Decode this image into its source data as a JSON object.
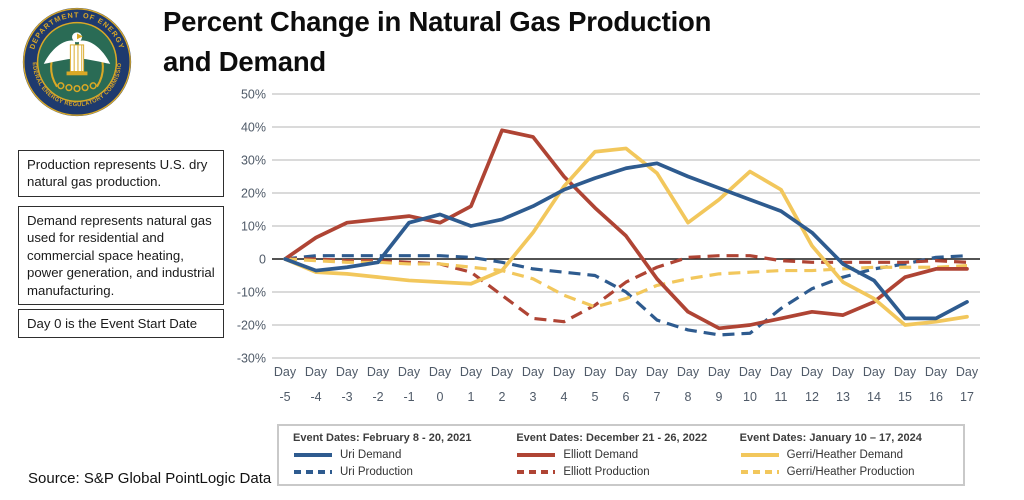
{
  "title": {
    "line1": "Percent Change in Natural Gas Production",
    "line2": "and Demand"
  },
  "logo": {
    "top_text": "DEPARTMENT OF ENERGY",
    "bottom_text": "FEDERAL ENERGY REGULATORY COMMISSION",
    "ring_color": "#1E3A6E",
    "field_color": "#2A6B55",
    "gold": "#D9A826"
  },
  "notes": [
    {
      "text": "Production represents U.S. dry natural gas production."
    },
    {
      "text": "Demand represents natural gas used for residential and commercial space heating, power generation, and industrial manufacturing."
    },
    {
      "text": "Day 0 is the Event Start Date"
    }
  ],
  "source": "Source: S&P Global PointLogic Data",
  "legend": {
    "groups": [
      {
        "event_dates": "Event Dates: February 8 - 20, 2021",
        "entries": [
          {
            "label": "Uri Demand",
            "style": "solid",
            "color": "#2E5B8F"
          },
          {
            "label": "Uri Production",
            "style": "dashed",
            "color": "#2E5B8F"
          }
        ]
      },
      {
        "event_dates": "Event Dates: December 21 - 26, 2022",
        "entries": [
          {
            "label": "Elliott Demand",
            "style": "solid",
            "color": "#AF4434"
          },
          {
            "label": "Elliott Production",
            "style": "dashed",
            "color": "#AF4434"
          }
        ]
      },
      {
        "event_dates": "Event Dates: January 10 – 17, 2024",
        "entries": [
          {
            "label": "Gerri/Heather Demand",
            "style": "solid",
            "color": "#F2C75C"
          },
          {
            "label": "Gerri/Heather Production",
            "style": "dashed",
            "color": "#F2C75C"
          }
        ]
      }
    ]
  },
  "chart_data": {
    "type": "line",
    "x_tick_prefix": "Day",
    "categories": [
      "-5",
      "-4",
      "-3",
      "-2",
      "-1",
      "0",
      "1",
      "2",
      "3",
      "4",
      "5",
      "6",
      "7",
      "8",
      "9",
      "10",
      "11",
      "12",
      "13",
      "14",
      "15",
      "16",
      "17"
    ],
    "ylim": [
      -30,
      50
    ],
    "yticks": [
      50,
      40,
      30,
      20,
      10,
      0,
      -10,
      -20,
      -30
    ],
    "grid": true,
    "legend_position": "bottom",
    "series": [
      {
        "name": "Uri Demand",
        "color": "#2E5B8F",
        "dash": false,
        "values": [
          0,
          -3.5,
          -2.5,
          -1,
          11,
          13.5,
          10,
          12,
          16,
          21,
          24.5,
          27.5,
          29,
          25,
          21.5,
          18,
          14.5,
          8,
          -1.5,
          -6.5,
          -18,
          -18,
          -13
        ]
      },
      {
        "name": "Uri Production",
        "color": "#2E5B8F",
        "dash": true,
        "values": [
          0,
          1,
          1,
          1,
          1,
          1,
          0.5,
          -1,
          -3,
          -4,
          -5,
          -10,
          -18.5,
          -21.5,
          -23,
          -22.5,
          -15,
          -9,
          -5.5,
          -3,
          -1.5,
          0.5,
          1
        ]
      },
      {
        "name": "Elliott Demand",
        "color": "#AF4434",
        "dash": false,
        "values": [
          0,
          6.5,
          11,
          12,
          13,
          11,
          16,
          39,
          37,
          25,
          15.5,
          7,
          -6,
          -16,
          -21,
          -20,
          -18,
          -16,
          -17,
          -13,
          -5.5,
          -3,
          -3
        ]
      },
      {
        "name": "Elliott Production",
        "color": "#AF4434",
        "dash": true,
        "values": [
          0,
          0,
          -0.5,
          -0.5,
          -1,
          -1.5,
          -4,
          -11,
          -18,
          -19,
          -14,
          -7,
          -2.5,
          0.5,
          1,
          1,
          -0.5,
          -1,
          -1,
          -1,
          -1,
          -0.5,
          -1
        ]
      },
      {
        "name": "Gerri/Heather Demand",
        "color": "#F2C75C",
        "dash": false,
        "values": [
          0,
          -4,
          -4.5,
          -5.5,
          -6.5,
          -7,
          -7.5,
          -3.5,
          8,
          22,
          32.5,
          33.5,
          26,
          11,
          18,
          26.5,
          21,
          4,
          -7,
          -12,
          -20,
          -19,
          -17.5
        ]
      },
      {
        "name": "Gerri/Heather Production",
        "color": "#F2C75C",
        "dash": true,
        "values": [
          0,
          -0.5,
          -1,
          -1,
          -1.5,
          -1.5,
          -2.5,
          -3.5,
          -6,
          -11,
          -14.5,
          -12,
          -8,
          -6,
          -4.5,
          -4,
          -3.5,
          -3.5,
          -3,
          -2.5,
          -2.5,
          -2.5,
          -2
        ]
      }
    ]
  }
}
